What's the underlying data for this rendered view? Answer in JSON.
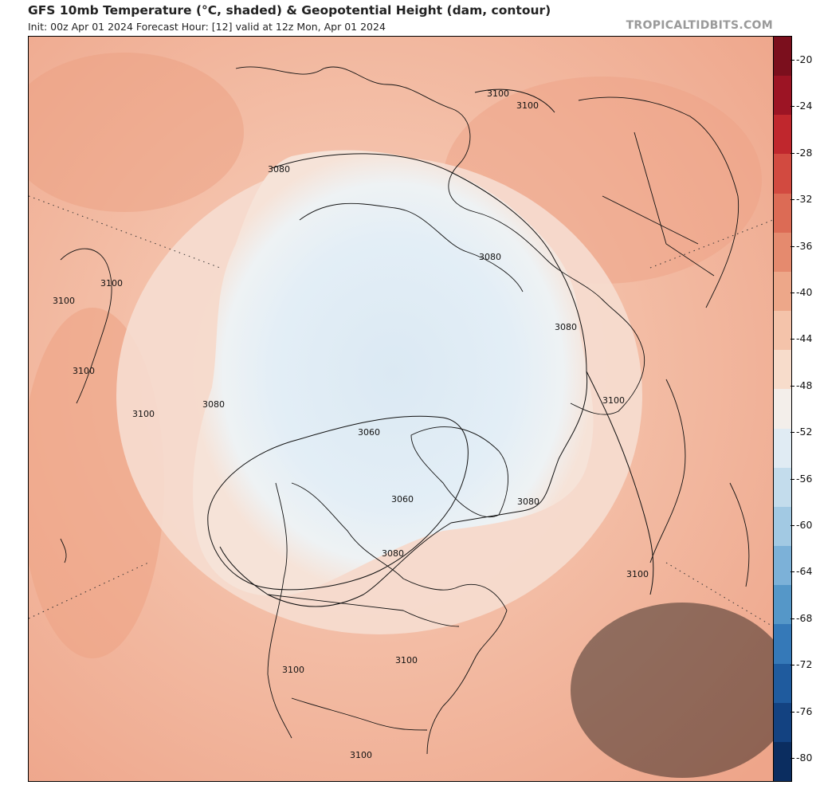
{
  "header": {
    "title": "GFS 10mb Temperature (°C, shaded) & Geopotential Height (dam, contour)",
    "subtitle": "Init: 00z Apr 01 2024   Forecast Hour: [12]   valid at 12z Mon, Apr 01 2024",
    "watermark": "TROPICALTIDBITS.COM"
  },
  "colorbar": {
    "labels": [
      "-20",
      "-24",
      "-28",
      "-32",
      "-36",
      "-40",
      "-44",
      "-48",
      "-52",
      "-56",
      "-60",
      "-64",
      "-68",
      "-72",
      "-76",
      "-80"
    ],
    "colors": [
      "#7b0f1d",
      "#9c1424",
      "#c0272d",
      "#d24a40",
      "#dc6b55",
      "#e58a6e",
      "#eda789",
      "#f4c3aa",
      "#f7dccb",
      "#f3eeea",
      "#e0ebf3",
      "#c3dcec",
      "#a2c9e3",
      "#7cb1d8",
      "#5597c8",
      "#3579b8",
      "#1f5b9e",
      "#134281",
      "#0b2d60"
    ],
    "ticks": [
      -20,
      -24,
      -28,
      -32,
      -36,
      -40,
      -44,
      -48,
      -52,
      -56,
      -60,
      -64,
      -68,
      -72,
      -76,
      -80
    ]
  },
  "map": {
    "background_color": "#f1b39b",
    "polar_vortex_color": "#e6eff6",
    "contour_labels": [
      {
        "id": "c1",
        "text": "3100"
      },
      {
        "id": "c2",
        "text": "3100"
      },
      {
        "id": "c3",
        "text": "3080"
      },
      {
        "id": "c4",
        "text": "3080"
      },
      {
        "id": "c5",
        "text": "3100"
      },
      {
        "id": "c6",
        "text": "3100"
      },
      {
        "id": "c7",
        "text": "3100"
      },
      {
        "id": "c8",
        "text": "3080"
      },
      {
        "id": "c9",
        "text": "3080"
      },
      {
        "id": "c10",
        "text": "3060"
      },
      {
        "id": "c11",
        "text": "3060"
      },
      {
        "id": "c12",
        "text": "3080"
      },
      {
        "id": "c13",
        "text": "3080"
      },
      {
        "id": "c14",
        "text": "3100"
      },
      {
        "id": "c15",
        "text": "3100"
      },
      {
        "id": "c16",
        "text": "3100"
      },
      {
        "id": "c17",
        "text": "3100"
      },
      {
        "id": "c18",
        "text": "3100"
      },
      {
        "id": "c19",
        "text": "3100"
      }
    ]
  }
}
